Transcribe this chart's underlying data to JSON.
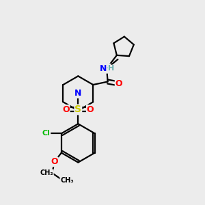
{
  "background_color": "#ececec",
  "atom_colors": {
    "C": "#000000",
    "N": "#0000ff",
    "O": "#ff0000",
    "S": "#cccc00",
    "Cl": "#00bb00",
    "H": "#6ab0b0"
  },
  "bond_color": "#000000",
  "bond_width": 1.6,
  "font_size": 9
}
